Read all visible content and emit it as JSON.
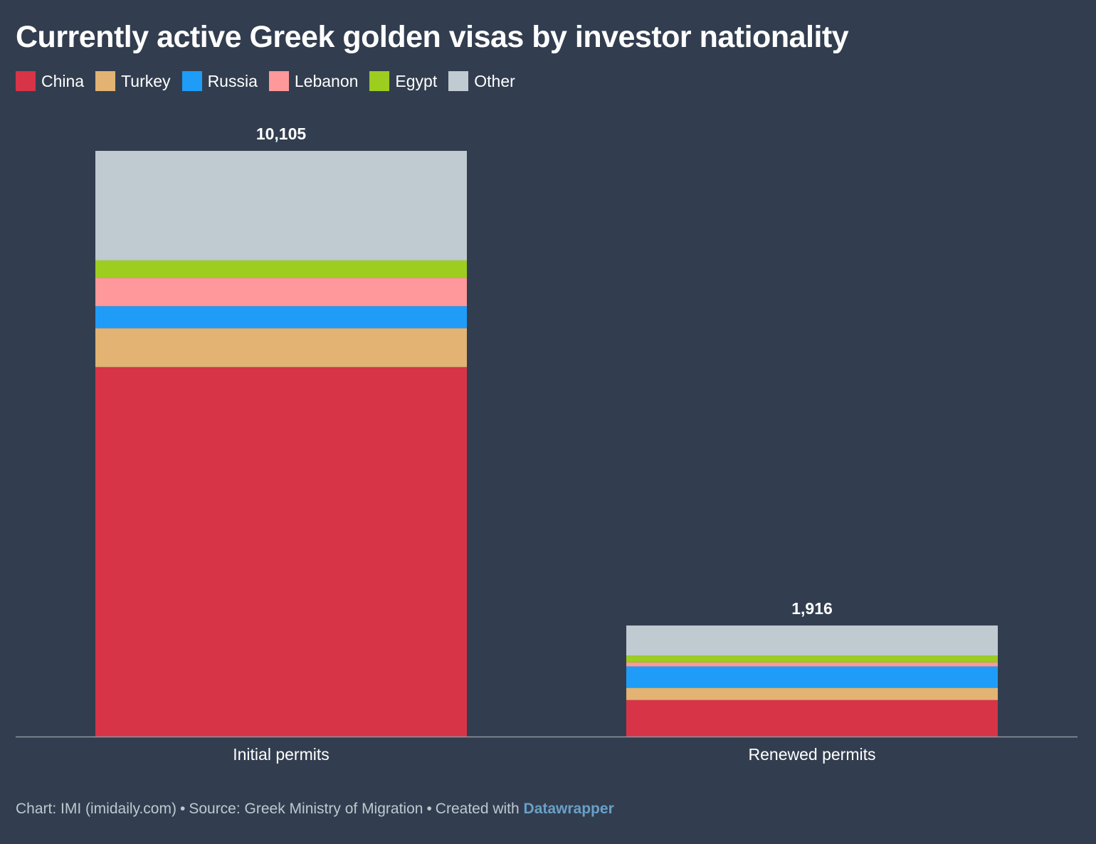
{
  "title": "Currently active Greek golden visas by investor nationality",
  "colors": {
    "background": "#323e4f",
    "China": "#d73447",
    "Turkey": "#e2b373",
    "Russia": "#1e9cf8",
    "Lebanon": "#ff989a",
    "Egypt": "#9ccd1f",
    "Other": "#bfcad1",
    "axis": "#8d96a1",
    "footer_text": "#bfc8d1",
    "footer_link": "#69a0c8"
  },
  "chart_data": {
    "type": "bar",
    "stacked": true,
    "categories": [
      "Initial permits",
      "Renewed permits"
    ],
    "totals": [
      10105,
      1916
    ],
    "total_labels": [
      "10,105",
      "1,916"
    ],
    "series": [
      {
        "name": "China",
        "values": [
          6375,
          630
        ]
      },
      {
        "name": "Turkey",
        "values": [
          670,
          210
        ]
      },
      {
        "name": "Russia",
        "values": [
          380,
          370
        ]
      },
      {
        "name": "Lebanon",
        "values": [
          490,
          70
        ]
      },
      {
        "name": "Egypt",
        "values": [
          300,
          115
        ]
      },
      {
        "name": "Other",
        "values": [
          1890,
          521
        ]
      }
    ],
    "ylim": [
      0,
      10105
    ],
    "xlabel": "",
    "ylabel": "",
    "grid": false,
    "legend_position": "top-left"
  },
  "footer": {
    "chart_credit": "Chart: IMI (imidaily.com)",
    "separator": "•",
    "source": "Source: Greek Ministry of Migration",
    "created_with": "Created with",
    "tool": "Datawrapper"
  }
}
